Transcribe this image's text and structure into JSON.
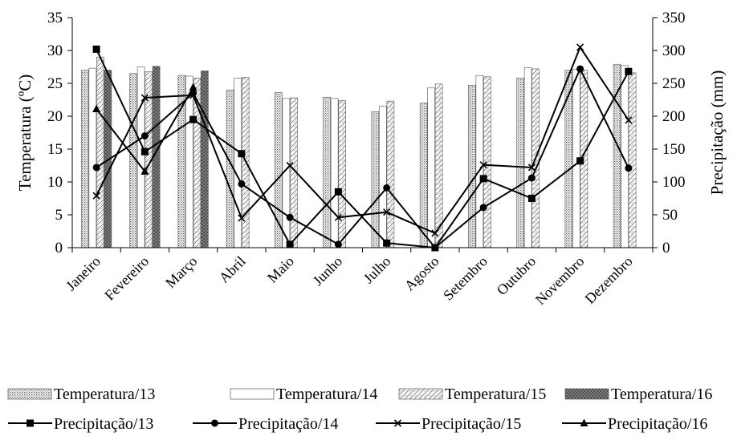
{
  "chart_data": {
    "type": "bar",
    "categories": [
      "Janeiro",
      "Fevereiro",
      "Março",
      "Abril",
      "Maio",
      "Junho",
      "Julho",
      "Agosto",
      "Setembro",
      "Outubro",
      "Novembro",
      "Dezembro"
    ],
    "ylabel": "Temperatura (ºC)",
    "ylim": [
      0,
      35
    ],
    "yticks": [
      "0",
      "5",
      "10",
      "15",
      "20",
      "25",
      "30",
      "35"
    ],
    "y2label": "Precipitação (mm)",
    "y2lim": [
      0,
      350
    ],
    "y2ticks": [
      "0",
      "50",
      "100",
      "150",
      "200",
      "250",
      "300",
      "350"
    ],
    "legend_position": "bottom",
    "bar_series": [
      {
        "name": "Temperatura/13",
        "pattern": "dots",
        "values": [
          27.0,
          26.5,
          26.2,
          24.0,
          23.6,
          22.9,
          20.7,
          22.0,
          24.7,
          25.8,
          27.0,
          27.9
        ]
      },
      {
        "name": "Temperatura/14",
        "pattern": "blank",
        "values": [
          27.3,
          27.5,
          26.1,
          25.8,
          22.7,
          22.7,
          21.5,
          24.3,
          26.2,
          27.4,
          27.1,
          27.7
        ]
      },
      {
        "name": "Temperatura/15",
        "pattern": "wave",
        "values": [
          29.0,
          26.8,
          25.8,
          25.9,
          22.8,
          22.4,
          22.3,
          24.9,
          26.0,
          27.2,
          27.0,
          26.6
        ]
      },
      {
        "name": "Temperatura/16",
        "pattern": "cross",
        "values": [
          27.0,
          27.6,
          26.9,
          null,
          null,
          null,
          null,
          null,
          null,
          null,
          null,
          null
        ]
      }
    ],
    "line_series": [
      {
        "name": "Precipitação/13",
        "marker": "square",
        "values": [
          302,
          146,
          195,
          143,
          5,
          85,
          7,
          0,
          105,
          75,
          132,
          268
        ]
      },
      {
        "name": "Precipitação/14",
        "marker": "circle",
        "values": [
          122,
          170,
          235,
          97,
          46,
          5,
          91,
          0,
          61,
          106,
          272,
          121
        ]
      },
      {
        "name": "Precipitação/15",
        "marker": "x",
        "values": [
          79,
          228,
          232,
          45,
          125,
          46,
          54,
          22,
          126,
          122,
          305,
          194
        ]
      },
      {
        "name": "Precipitação/16",
        "marker": "triangle",
        "values": [
          211,
          116,
          244,
          null,
          null,
          null,
          null,
          null,
          null,
          null,
          null,
          null
        ]
      }
    ]
  }
}
